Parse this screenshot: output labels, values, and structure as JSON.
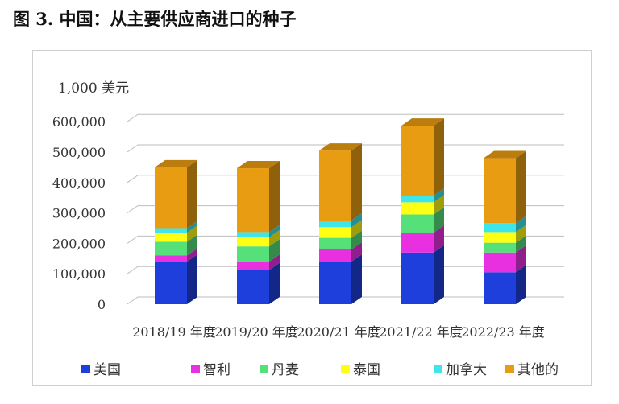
{
  "figure": {
    "title": "图 3. 中国：从主要供应商进口的种子"
  },
  "colors": {
    "series": [
      "#1f3fdc",
      "#e830e0",
      "#55e07a",
      "#ffff14",
      "#3ee6ea",
      "#e89c12"
    ],
    "grid": "#bdbdbd"
  },
  "chart_data": {
    "type": "bar",
    "stacked": true,
    "style": "3d",
    "unit_label": "1,000 美元",
    "categories": [
      "2018/19 年度",
      "2019/20 年度",
      "2020/21 年度",
      "2021/22 年度",
      "2022/23 年度"
    ],
    "series": [
      {
        "name": "美国",
        "values": [
          140000,
          112000,
          140000,
          170000,
          105000
        ]
      },
      {
        "name": "智利",
        "values": [
          20000,
          28000,
          40000,
          65000,
          65000
        ]
      },
      {
        "name": "丹麦",
        "values": [
          45000,
          50000,
          38000,
          60000,
          32000
        ]
      },
      {
        "name": "泰国",
        "values": [
          30000,
          30000,
          35000,
          40000,
          35000
        ]
      },
      {
        "name": "加拿大",
        "values": [
          15000,
          17000,
          22000,
          22000,
          30000
        ]
      },
      {
        "name": "其他的",
        "values": [
          200000,
          210000,
          230000,
          230000,
          213000
        ]
      }
    ],
    "yticks": [
      0,
      100000,
      200000,
      300000,
      400000,
      500000,
      600000
    ],
    "ytick_labels": [
      "0",
      "100,000",
      "200,000",
      "300,000",
      "400,000",
      "500,000",
      "600,000"
    ],
    "ylim": [
      0,
      600000
    ],
    "grid": true,
    "legend_position": "bottom"
  }
}
